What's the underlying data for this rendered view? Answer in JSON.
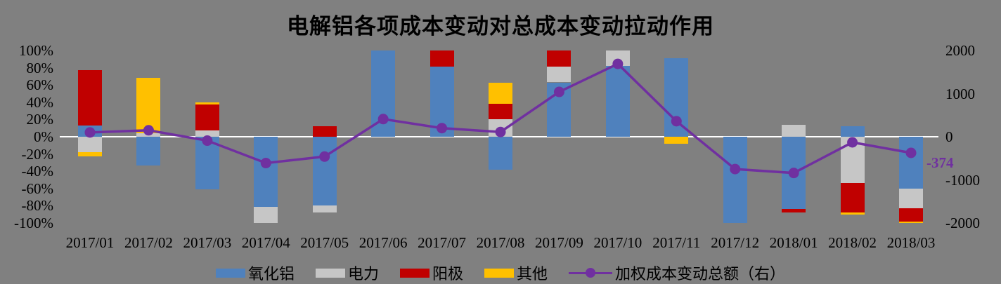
{
  "title": "电解铝各项成本变动对总成本变动拉动作用",
  "colors": {
    "background": "#808080",
    "zero_line": "#FFFFFF",
    "text": "#000000",
    "alumina": "#4F81BD",
    "power": "#C6C6C6",
    "anode": "#C00000",
    "other": "#FFC000",
    "line": "#7030A0"
  },
  "left_axis": {
    "ticks": [
      "100%",
      "80%",
      "60%",
      "40%",
      "20%",
      "0%",
      "-20%",
      "-40%",
      "-60%",
      "-80%",
      "-100%"
    ],
    "values": [
      100,
      80,
      60,
      40,
      20,
      0,
      -20,
      -40,
      -60,
      -80,
      -100
    ],
    "min": -100,
    "max": 100,
    "unit": "%"
  },
  "right_axis": {
    "ticks": [
      "2000",
      "1000",
      "0",
      "-1000",
      "-2000"
    ],
    "values": [
      2000,
      1000,
      0,
      -1000,
      -2000
    ],
    "min": -2000,
    "max": 2000
  },
  "chart_data": {
    "type": "bar",
    "subtype": "stacked-bar-with-line-combo",
    "title": "电解铝各项成本变动对总成本变动拉动作用",
    "categories": [
      "2017/01",
      "2017/02",
      "2017/03",
      "2017/04",
      "2017/05",
      "2017/06",
      "2017/07",
      "2017/08",
      "2017/09",
      "2017/10",
      "2017/11",
      "2017/12",
      "2018/01",
      "2018/02",
      "2018/03"
    ],
    "series": [
      {
        "key": "alumina",
        "name": "氧化铝",
        "axis": "left",
        "unit": "%",
        "color": "#4F81BD",
        "values": [
          13,
          -33,
          -61,
          -81,
          -80,
          100,
          81,
          -38,
          63,
          82,
          91,
          -100,
          -84,
          12,
          -60
        ]
      },
      {
        "key": "power",
        "name": "电力",
        "axis": "left",
        "unit": "%",
        "color": "#C6C6C6",
        "values": [
          -18,
          4,
          7,
          -19,
          -8,
          0,
          0,
          20,
          18,
          18,
          0,
          0,
          14,
          -54,
          -23
        ]
      },
      {
        "key": "anode",
        "name": "阳极",
        "axis": "left",
        "unit": "%",
        "color": "#C00000",
        "values": [
          64,
          0,
          30,
          0,
          12,
          0,
          19,
          18,
          19,
          0,
          0,
          0,
          -4,
          -34,
          -15
        ]
      },
      {
        "key": "other",
        "name": "其他",
        "axis": "left",
        "unit": "%",
        "color": "#FFC000",
        "values": [
          -5,
          64,
          3,
          0,
          0,
          0,
          0,
          25,
          0,
          0,
          -8,
          0,
          0,
          -2,
          -2
        ]
      }
    ],
    "line_series": {
      "key": "weighted-total",
      "name": "加权成本变动总额（右）",
      "axis": "right",
      "color": "#7030A0",
      "values": [
        100,
        150,
        -90,
        -610,
        -460,
        410,
        200,
        110,
        1040,
        1690,
        360,
        -750,
        -840,
        -130,
        -374
      ]
    },
    "annotation": {
      "text": "-374",
      "category": "2018/03",
      "value": -374
    },
    "legend_position": "bottom",
    "grid": "zero-line-only",
    "ylim_left": [
      -100,
      100
    ],
    "ylim_right": [
      -2000,
      2000
    ]
  }
}
